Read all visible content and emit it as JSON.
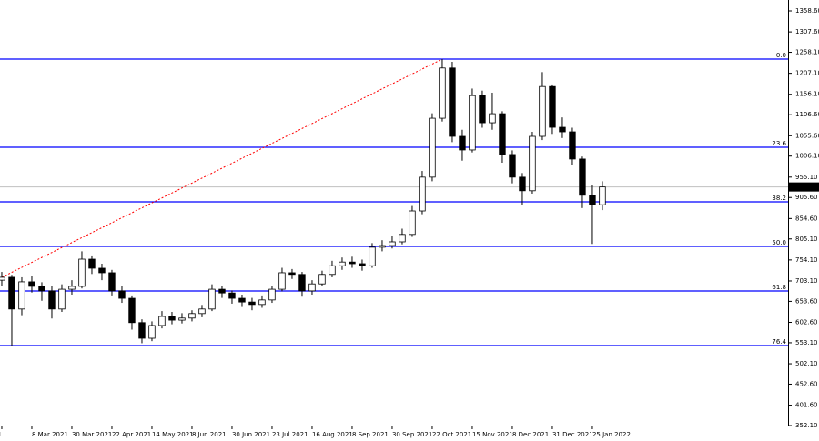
{
  "chart_data": {
    "type": "candlestick",
    "open": [
      705,
      712,
      635,
      701,
      690,
      679,
      635,
      683,
      690,
      756,
      734,
      723,
      679,
      661,
      602,
      564,
      595,
      617,
      608,
      613,
      624,
      635,
      683,
      674,
      661,
      652,
      646,
      657,
      683,
      723,
      719,
      679,
      696,
      719,
      740,
      749,
      745,
      740,
      785,
      789,
      798,
      816,
      873,
      955,
      1098,
      1220,
      1054,
      1021,
      1153,
      1087,
      1109,
      1010,
      955,
      922,
      1054,
      1175,
      1076,
      1065,
      999,
      911,
      888
    ],
    "high": [
      725,
      718,
      712,
      715,
      700,
      690,
      695,
      705,
      775,
      765,
      745,
      730,
      690,
      668,
      610,
      605,
      630,
      628,
      625,
      632,
      645,
      695,
      692,
      680,
      670,
      662,
      668,
      692,
      735,
      732,
      725,
      705,
      728,
      752,
      760,
      762,
      755,
      795,
      802,
      812,
      830,
      885,
      970,
      1110,
      1241.6,
      1235,
      1070,
      1170,
      1165,
      1160,
      1115,
      1020,
      965,
      1065,
      1210,
      1180,
      1100,
      1075,
      1005,
      935,
      945
    ],
    "low": [
      690,
      546,
      620,
      675,
      655,
      612,
      628,
      670,
      685,
      720,
      705,
      668,
      650,
      585,
      552,
      557,
      588,
      598,
      600,
      605,
      615,
      630,
      662,
      648,
      640,
      632,
      638,
      650,
      678,
      708,
      665,
      670,
      690,
      712,
      730,
      735,
      728,
      735,
      775,
      782,
      792,
      810,
      865,
      945,
      1090,
      1040,
      995,
      1015,
      1075,
      1070,
      990,
      940,
      888,
      915,
      1045,
      1060,
      1050,
      985,
      880,
      793,
      875
    ],
    "close": [
      712,
      635,
      701,
      690,
      679,
      635,
      683,
      690,
      756,
      734,
      723,
      679,
      661,
      602,
      564,
      595,
      617,
      608,
      613,
      624,
      635,
      683,
      674,
      661,
      652,
      646,
      657,
      683,
      723,
      719,
      679,
      696,
      719,
      740,
      749,
      745,
      740,
      785,
      789,
      798,
      816,
      873,
      955,
      1098,
      1220,
      1054,
      1021,
      1153,
      1087,
      1109,
      1010,
      955,
      922,
      1054,
      1175,
      1076,
      1065,
      999,
      911,
      888,
      931.21
    ],
    "last_price": 931.21,
    "xlim": [
      -0.18,
      78.55
    ],
    "xticks": [
      {
        "value": 0,
        "label": "2021"
      },
      {
        "value": 3,
        "label": "8 Mar 2021"
      },
      {
        "value": 7,
        "label": "30 Mar 2021"
      },
      {
        "value": 11,
        "label": "22 Apr 2021"
      },
      {
        "value": 15,
        "label": "14 May 2021"
      },
      {
        "value": 19,
        "label": "8 Jun 2021"
      },
      {
        "value": 23,
        "label": "30 Jun 2021"
      },
      {
        "value": 27,
        "label": "23 Jul 2021"
      },
      {
        "value": 31,
        "label": "16 Aug 2021"
      },
      {
        "value": 35,
        "label": "8 Sep 2021"
      },
      {
        "value": 39,
        "label": "30 Sep 2021"
      },
      {
        "value": 43,
        "label": "22 Oct 2021"
      },
      {
        "value": 47,
        "label": "15 Nov 2021"
      },
      {
        "value": 51,
        "label": "8 Dec 2021"
      },
      {
        "value": 55,
        "label": "31 Dec 2021"
      },
      {
        "value": 59,
        "label": "25 Jan 2022"
      }
    ],
    "ylim": [
      352.1,
      1385.1
    ],
    "yticks": [
      {
        "value": 1358.6,
        "label": "1358.60"
      },
      {
        "value": 1307.6,
        "label": "1307.60"
      },
      {
        "value": 1258.1,
        "label": "1258.10"
      },
      {
        "value": 1207.1,
        "label": "1207.10"
      },
      {
        "value": 1156.1,
        "label": "1156.10"
      },
      {
        "value": 1106.6,
        "label": "1106.60"
      },
      {
        "value": 1055.6,
        "label": "1055.60"
      },
      {
        "value": 1006.1,
        "label": "1006.10"
      },
      {
        "value": 955.1,
        "label": "955.10"
      },
      {
        "value": 905.6,
        "label": "905.60"
      },
      {
        "value": 854.6,
        "label": "854.60"
      },
      {
        "value": 805.1,
        "label": "805.10"
      },
      {
        "value": 754.1,
        "label": "754.10"
      },
      {
        "value": 703.1,
        "label": "703.10"
      },
      {
        "value": 653.6,
        "label": "653.60"
      },
      {
        "value": 602.6,
        "label": "602.60"
      },
      {
        "value": 553.1,
        "label": "553.10"
      },
      {
        "value": 502.1,
        "label": "502.10"
      },
      {
        "value": 452.6,
        "label": "452.60"
      },
      {
        "value": 401.6,
        "label": "401.60"
      },
      {
        "value": 352.1,
        "label": "352.10"
      }
    ],
    "fib_levels": [
      {
        "label": "0.0",
        "value": 1241.6
      },
      {
        "label": "23.6",
        "value": 1027.5
      },
      {
        "label": "38.2",
        "value": 895.1
      },
      {
        "label": "50.0",
        "value": 786.9
      },
      {
        "label": "61.8",
        "value": 678.8
      },
      {
        "label": "76.4",
        "value": 546.4
      }
    ],
    "fib_color": "#0000ff",
    "trendline": {
      "x": [
        0,
        44
      ],
      "y": [
        712,
        1241.6
      ],
      "color": "#ff0000"
    },
    "bull_color": "#ffffff",
    "bear_color": "#000000"
  }
}
